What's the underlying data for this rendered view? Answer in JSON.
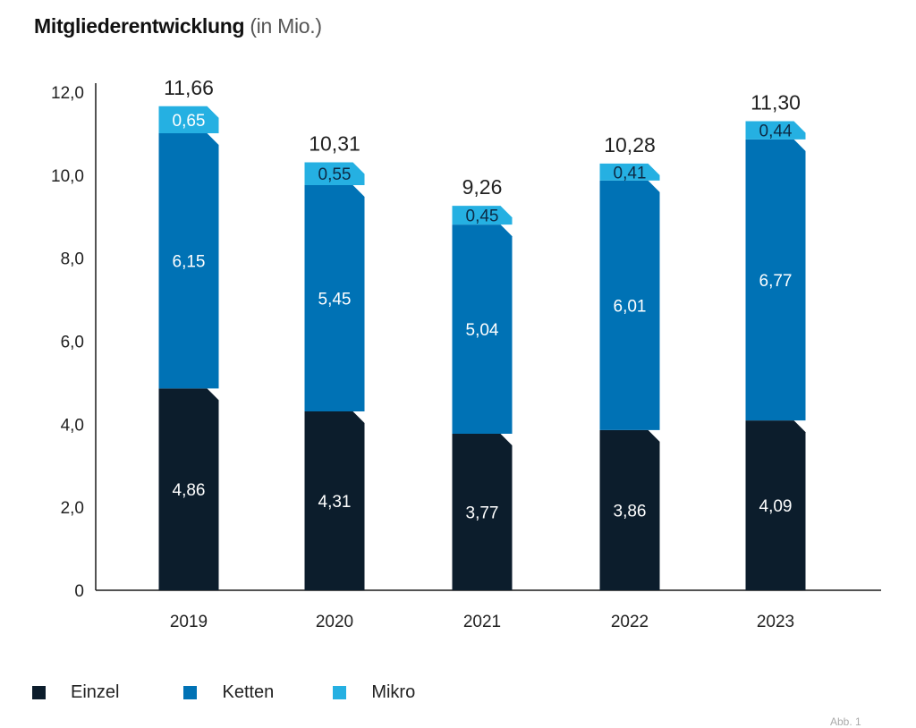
{
  "title": "Mitgliederentwicklung",
  "subtitle": "(in Mio.)",
  "footnote": "Abb. 1",
  "chart_data": {
    "type": "bar",
    "stacked": true,
    "categories": [
      "2019",
      "2020",
      "2021",
      "2022",
      "2023"
    ],
    "series": [
      {
        "name": "Einzel",
        "color": "#0c1d2c",
        "values": [
          4.86,
          4.31,
          3.77,
          3.86,
          4.09
        ],
        "labels": [
          "4,86",
          "4,31",
          "3,77",
          "3,86",
          "4,09"
        ]
      },
      {
        "name": "Ketten",
        "color": "#0072b5",
        "values": [
          6.15,
          5.45,
          5.04,
          6.01,
          6.77
        ],
        "labels": [
          "6,15",
          "5,45",
          "5,04",
          "6,01",
          "6,77"
        ]
      },
      {
        "name": "Mikro",
        "color": "#25b0e2",
        "values": [
          0.65,
          0.55,
          0.45,
          0.41,
          0.44
        ],
        "labels": [
          "0,65",
          "0,55",
          "0,45",
          "0,41",
          "0,44"
        ]
      }
    ],
    "totals": [
      11.66,
      10.31,
      9.26,
      10.28,
      11.3
    ],
    "total_labels": [
      "11,66",
      "10,31",
      "9,26",
      "10,28",
      "11,30"
    ],
    "ylim": [
      0,
      12
    ],
    "yticks": [
      0,
      2,
      4,
      6,
      8,
      10,
      12
    ],
    "ytick_labels": [
      "0",
      "2,0",
      "4,0",
      "6,0",
      "8,0",
      "10,0",
      "12,0"
    ],
    "grid": false,
    "legend_position": "bottom-left"
  }
}
